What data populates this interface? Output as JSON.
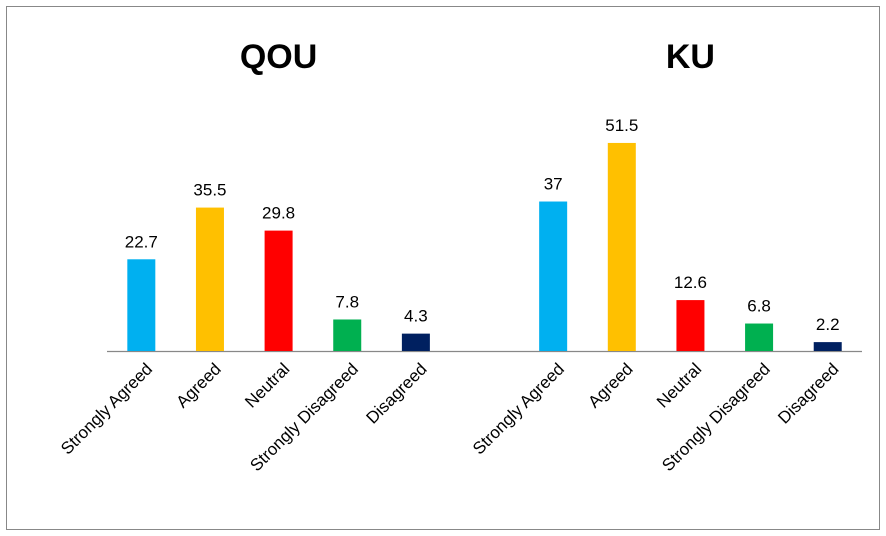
{
  "chart_data": [
    {
      "type": "bar",
      "title": "QOU",
      "categories": [
        "Strongly Agreed",
        "Agreed",
        "Neutral",
        "Strongly Disagreed",
        "Disagreed"
      ],
      "values": [
        22.7,
        35.5,
        29.8,
        7.8,
        4.3
      ],
      "colors": [
        "#00b0f0",
        "#ffc000",
        "#ff0000",
        "#00b050",
        "#002060"
      ]
    },
    {
      "type": "bar",
      "title": "KU",
      "categories": [
        "Strongly Agreed",
        "Agreed",
        "Neutral",
        "Strongly Disagreed",
        "Disagreed"
      ],
      "values": [
        37,
        51.5,
        12.6,
        6.8,
        2.2
      ],
      "colors": [
        "#00b0f0",
        "#ffc000",
        "#ff0000",
        "#00b050",
        "#002060"
      ]
    }
  ]
}
